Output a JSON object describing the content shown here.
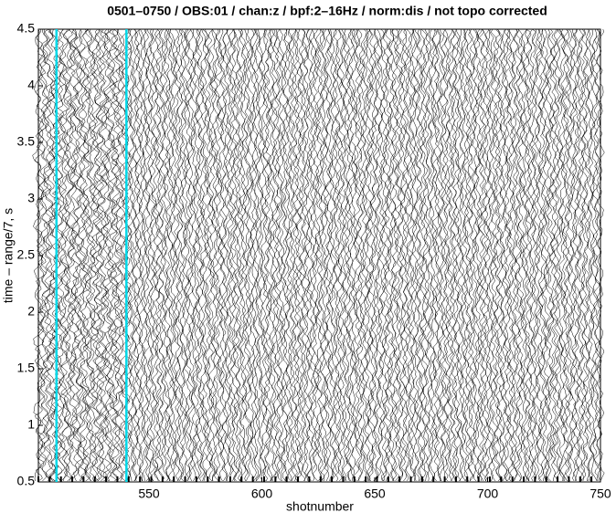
{
  "chart_data": {
    "type": "section",
    "title": "0501–0750 / OBS:01 / chan:z / bpf:2–16Hz / norm:dis / not topo corrected",
    "xlabel": "shotnumber",
    "ylabel": "time – range/7, s",
    "xlim": [
      501,
      750
    ],
    "xticks": [
      550,
      600,
      650,
      700,
      750
    ],
    "ylim": [
      0.5,
      4.5
    ],
    "yticks": [
      0.5,
      1,
      1.5,
      2,
      2.5,
      3,
      3.5,
      4,
      4.5
    ],
    "markers": [
      509,
      540
    ],
    "marker_color": "#00d8e8"
  }
}
